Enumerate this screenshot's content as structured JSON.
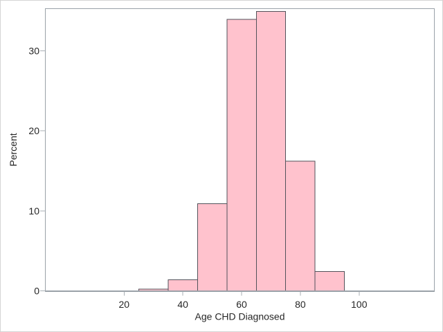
{
  "chart_data": {
    "type": "bar",
    "subtype": "histogram",
    "title": "",
    "xlabel": "Age CHD Diagnosed",
    "ylabel": "Percent",
    "bin_edges": [
      25,
      35,
      45,
      55,
      65,
      75,
      85,
      95
    ],
    "values": [
      0.2,
      1.4,
      10.9,
      33.9,
      34.9,
      16.2,
      2.4
    ],
    "x_ticks": [
      20,
      40,
      60,
      80,
      100
    ],
    "y_ticks": [
      0,
      10,
      20,
      30
    ],
    "xlim": [
      -6.8,
      125.6
    ],
    "ylim": [
      0,
      35.25
    ],
    "grid": "off",
    "legend": "none",
    "colors": {
      "bar_fill": "#FFC2CD",
      "bar_stroke": "#52525A",
      "axis_line": "#99A1A8",
      "tick_mark": "#A9AFB5",
      "text": "#262626",
      "plot_background": "#FFFFFF",
      "page_border": "#D4D4D4"
    }
  }
}
